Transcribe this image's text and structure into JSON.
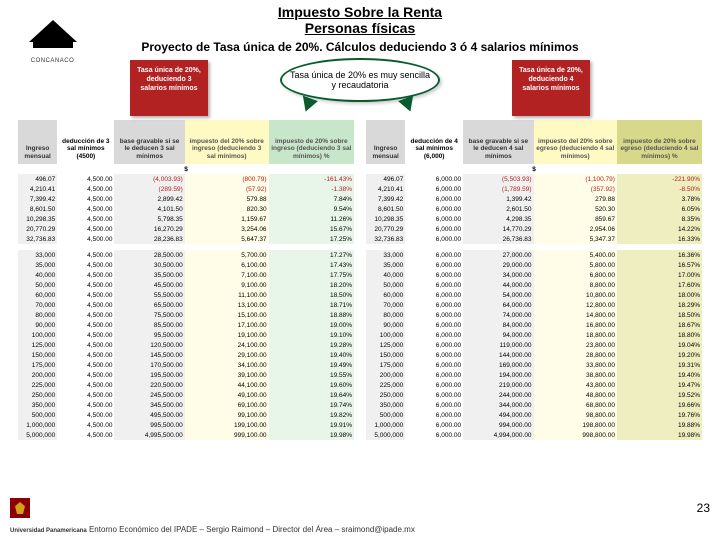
{
  "header": {
    "title1": "Impuesto Sobre la Renta",
    "title2": "Personas físicas",
    "subtitle": "Proyecto de Tasa única de 20%. Cálculos deduciendo 3 ó 4 salarios mínimos"
  },
  "logo": {
    "text": "CONCANACO"
  },
  "callout": {
    "badge_left": "Tasa única de 20%, deduciendo 3 salarios mínimos",
    "badge_right": "Tasa única de 20%, deduciendo 4 salarios mínimos",
    "oval": "Tasa única de 20% es muy sencilla y recaudatoria"
  },
  "table_left": {
    "headers": [
      "Ingreso mensual",
      "deducción de 3 sal mínimos (4500)",
      "base gravable si se le deducen 3 sal mínimos",
      "impuesto del 20% sobre ingreso (deduciendo 3 sal mínimos)",
      "impuesto de 20% sobre ingreso (deduciendo 3 sal mínimos) %"
    ],
    "currency": "$",
    "rows1": [
      [
        "496.07",
        "4,500.00",
        "(4,003.93)",
        "(800.79)",
        "-161.43%"
      ],
      [
        "4,210.41",
        "4,500.00",
        "(289.59)",
        "(57.92)",
        "-1.38%"
      ],
      [
        "7,399.42",
        "4,500.00",
        "2,899.42",
        "579.88",
        "7.84%"
      ],
      [
        "8,601.50",
        "4,500.00",
        "4,101.50",
        "820.30",
        "9.54%"
      ],
      [
        "10,298.35",
        "4,500.00",
        "5,798.35",
        "1,159.67",
        "11.26%"
      ],
      [
        "20,770.29",
        "4,500.00",
        "16,270.29",
        "3,254.06",
        "15.67%"
      ],
      [
        "32,736.83",
        "4,500.00",
        "28,236.83",
        "5,647.37",
        "17.25%"
      ]
    ],
    "rows2": [
      [
        "33,000",
        "4,500.00",
        "28,500.00",
        "5,700.00",
        "17.27%"
      ],
      [
        "35,000",
        "4,500.00",
        "30,500.00",
        "6,100.00",
        "17.43%"
      ],
      [
        "40,000",
        "4,500.00",
        "35,500.00",
        "7,100.00",
        "17.75%"
      ],
      [
        "50,000",
        "4,500.00",
        "45,500.00",
        "9,100.00",
        "18.20%"
      ],
      [
        "60,000",
        "4,500.00",
        "55,500.00",
        "11,100.00",
        "18.50%"
      ],
      [
        "70,000",
        "4,500.00",
        "65,500.00",
        "13,100.00",
        "18.71%"
      ],
      [
        "80,000",
        "4,500.00",
        "75,500.00",
        "15,100.00",
        "18.88%"
      ],
      [
        "90,000",
        "4,500.00",
        "85,500.00",
        "17,100.00",
        "19.00%"
      ],
      [
        "100,000",
        "4,500.00",
        "95,500.00",
        "19,100.00",
        "19.10%"
      ],
      [
        "125,000",
        "4,500.00",
        "120,500.00",
        "24,100.00",
        "19.28%"
      ],
      [
        "150,000",
        "4,500.00",
        "145,500.00",
        "29,100.00",
        "19.40%"
      ],
      [
        "175,000",
        "4,500.00",
        "170,500.00",
        "34,100.00",
        "19.49%"
      ],
      [
        "200,000",
        "4,500.00",
        "195,500.00",
        "39,100.00",
        "19.55%"
      ],
      [
        "225,000",
        "4,500.00",
        "220,500.00",
        "44,100.00",
        "19.60%"
      ],
      [
        "250,000",
        "4,500.00",
        "245,500.00",
        "49,100.00",
        "19.64%"
      ],
      [
        "350,000",
        "4,500.00",
        "345,500.00",
        "69,100.00",
        "19.74%"
      ],
      [
        "500,000",
        "4,500.00",
        "495,500.00",
        "99,100.00",
        "19.82%"
      ],
      [
        "1,000,000",
        "4,500.00",
        "995,500.00",
        "199,100.00",
        "19.91%"
      ],
      [
        "5,000,000",
        "4,500.00",
        "4,995,500.00",
        "999,100.00",
        "19.98%"
      ]
    ]
  },
  "table_right": {
    "headers": [
      "Ingreso mensual",
      "deducción de 4 sal mínimos (6,000)",
      "base gravable si se le deducen 4 sal mínimos",
      "impuesto del 20% sobre egreso (deduciendo 4 sal mínimos)",
      "impuesto de 20% sobre egreso (deduciendo 4 sal mínimos) %"
    ],
    "currency": "$",
    "rows1": [
      [
        "496.07",
        "6,000.00",
        "(5,503.93)",
        "(1,100.79)",
        "-221.90%"
      ],
      [
        "4,210.41",
        "6,000.00",
        "(1,789.59)",
        "(357.92)",
        "-8.50%"
      ],
      [
        "7,399.42",
        "6,000.00",
        "1,399.42",
        "279.88",
        "3.78%"
      ],
      [
        "8,601.50",
        "6,000.00",
        "2,601.50",
        "520.30",
        "6.05%"
      ],
      [
        "10,298.35",
        "6,000.00",
        "4,298.35",
        "859.67",
        "8.35%"
      ],
      [
        "20,770.29",
        "6,000.00",
        "14,770.29",
        "2,954.06",
        "14.22%"
      ],
      [
        "32,736.83",
        "6,000.00",
        "26,736.83",
        "5,347.37",
        "16.33%"
      ]
    ],
    "rows2": [
      [
        "33,000",
        "6,000.00",
        "27,000.00",
        "5,400.00",
        "16.36%"
      ],
      [
        "35,000",
        "6,000.00",
        "29,000.00",
        "5,800.00",
        "16.57%"
      ],
      [
        "40,000",
        "6,000.00",
        "34,000.00",
        "6,800.00",
        "17.00%"
      ],
      [
        "50,000",
        "6,000.00",
        "44,000.00",
        "8,800.00",
        "17.60%"
      ],
      [
        "60,000",
        "6,000.00",
        "54,000.00",
        "10,800.00",
        "18.00%"
      ],
      [
        "70,000",
        "6,000.00",
        "64,000.00",
        "12,800.00",
        "18.29%"
      ],
      [
        "80,000",
        "6,000.00",
        "74,000.00",
        "14,800.00",
        "18.50%"
      ],
      [
        "90,000",
        "6,000.00",
        "84,000.00",
        "16,800.00",
        "18.67%"
      ],
      [
        "100,000",
        "6,000.00",
        "94,000.00",
        "18,800.00",
        "18.80%"
      ],
      [
        "125,000",
        "6,000.00",
        "119,000.00",
        "23,800.00",
        "19.04%"
      ],
      [
        "150,000",
        "6,000.00",
        "144,000.00",
        "28,800.00",
        "19.20%"
      ],
      [
        "175,000",
        "6,000.00",
        "169,000.00",
        "33,800.00",
        "19.31%"
      ],
      [
        "200,000",
        "6,000.00",
        "194,000.00",
        "38,800.00",
        "19.40%"
      ],
      [
        "225,000",
        "6,000.00",
        "219,000.00",
        "43,800.00",
        "19.47%"
      ],
      [
        "250,000",
        "6,000.00",
        "244,000.00",
        "48,800.00",
        "19.52%"
      ],
      [
        "350,000",
        "6,000.00",
        "344,000.00",
        "68,800.00",
        "19.66%"
      ],
      [
        "500,000",
        "6,000.00",
        "494,000.00",
        "98,800.00",
        "19.76%"
      ],
      [
        "1,000,000",
        "6,000.00",
        "994,000.00",
        "198,800.00",
        "19.88%"
      ],
      [
        "5,000,000",
        "6,000.00",
        "4,994,000.00",
        "998,800.00",
        "19.98%"
      ]
    ]
  },
  "footer": {
    "institution": "Universidad Panamericana",
    "text": "Entorno Económico del IPADE – Sergio Raimond – Director del Área – sraimond@ipade.mx",
    "page": "23"
  },
  "colors": {
    "badge_bg": "#b22222",
    "oval_border": "#0a5c2e",
    "th_gray": "#d9d9d9",
    "th_yellow": "#fff9c4",
    "th_green": "#c8e6c9",
    "th_olive": "#d8d88a"
  }
}
